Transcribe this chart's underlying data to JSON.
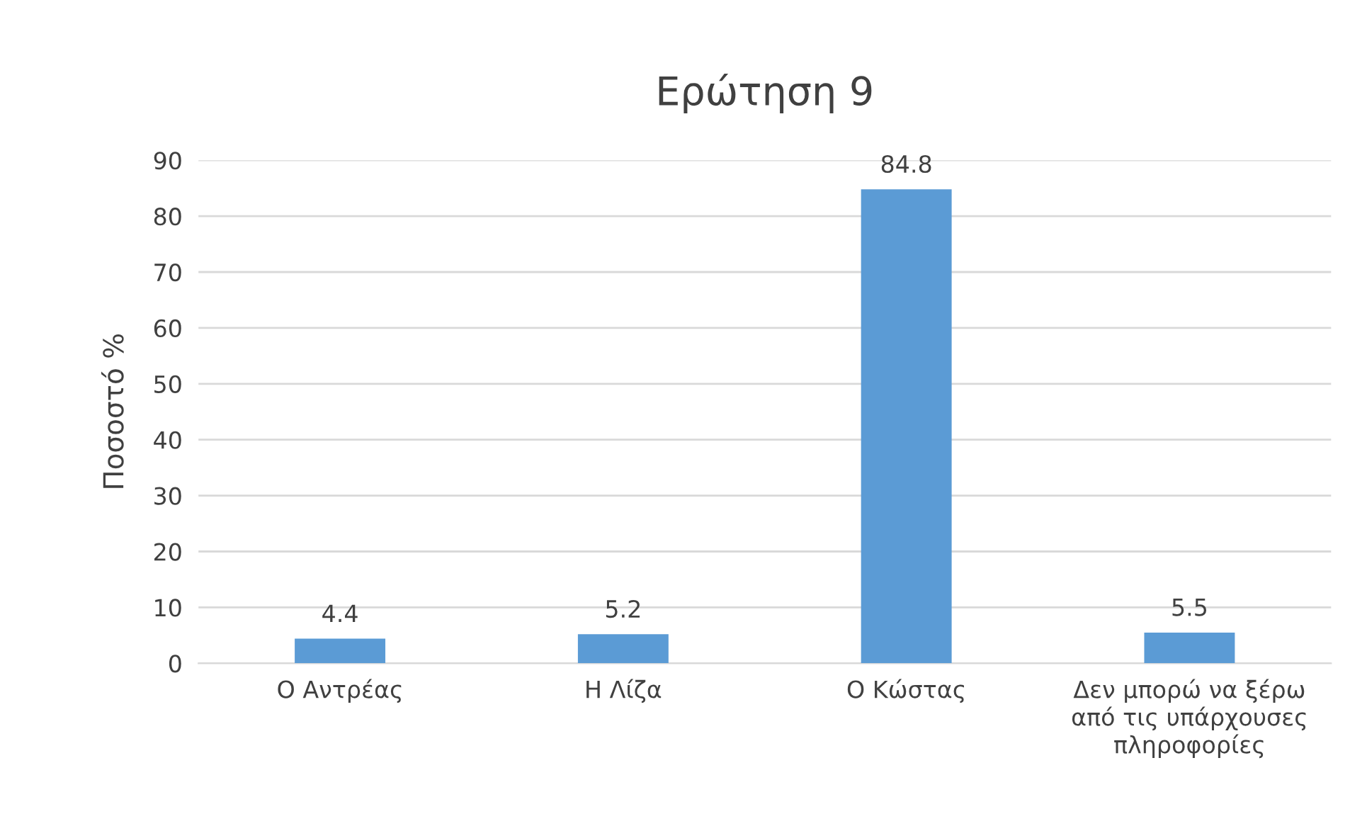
{
  "chart_data": {
    "type": "bar",
    "title": "Ερώτηση 9",
    "ylabel": "Ποσοστό %",
    "categories": [
      "Ο Αντρέας",
      "Η Λίζα",
      "Ο Κώστας",
      "Δεν μπορώ να ξέρω από τις υπάρχουσες πληροφορίες"
    ],
    "values": [
      4.4,
      5.2,
      84.8,
      5.5
    ],
    "color": "#5b9bd5",
    "ylim": [
      0,
      90
    ],
    "yticks": [
      0,
      10,
      20,
      30,
      40,
      50,
      60,
      70,
      80,
      90
    ],
    "grid": "y",
    "data_labels": true,
    "legend": false
  }
}
